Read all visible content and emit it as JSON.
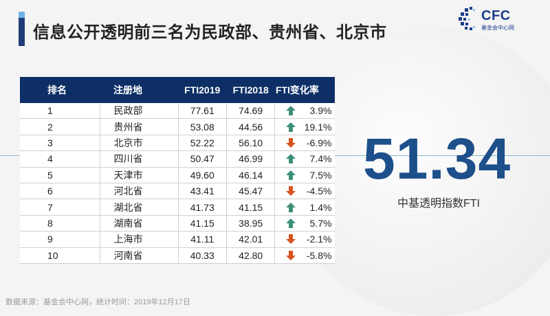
{
  "title": "信息公开透明前三名为民政部、贵州省、北京市",
  "logo": {
    "text": "CFC",
    "subtitle": "基金会中心网"
  },
  "table": {
    "headers": [
      "排名",
      "注册地",
      "FTI2019",
      "FTI2018",
      "FTI变化率"
    ],
    "rows": [
      {
        "rank": "1",
        "name": "民政部",
        "fti2019": "77.61",
        "fti2018": "74.69",
        "change": "3.9%",
        "dir": "up"
      },
      {
        "rank": "2",
        "name": "贵州省",
        "fti2019": "53.08",
        "fti2018": "44.56",
        "change": "19.1%",
        "dir": "up"
      },
      {
        "rank": "3",
        "name": "北京市",
        "fti2019": "52.22",
        "fti2018": "56.10",
        "change": "-6.9%",
        "dir": "down"
      },
      {
        "rank": "4",
        "name": "四川省",
        "fti2019": "50.47",
        "fti2018": "46.99",
        "change": "7.4%",
        "dir": "up"
      },
      {
        "rank": "5",
        "name": "天津市",
        "fti2019": "49.60",
        "fti2018": "46.14",
        "change": "7.5%",
        "dir": "up"
      },
      {
        "rank": "6",
        "name": "河北省",
        "fti2019": "43.41",
        "fti2018": "45.47",
        "change": "-4.5%",
        "dir": "down"
      },
      {
        "rank": "7",
        "name": "湖北省",
        "fti2019": "41.73",
        "fti2018": "41.15",
        "change": "1.4%",
        "dir": "up"
      },
      {
        "rank": "8",
        "name": "湖南省",
        "fti2019": "41.15",
        "fti2018": "38.95",
        "change": "5.7%",
        "dir": "up"
      },
      {
        "rank": "9",
        "name": "上海市",
        "fti2019": "41.11",
        "fti2018": "42.01",
        "change": "-2.1%",
        "dir": "down"
      },
      {
        "rank": "10",
        "name": "河南省",
        "fti2019": "40.33",
        "fti2018": "42.80",
        "change": "-5.8%",
        "dir": "down"
      }
    ]
  },
  "highlight": {
    "value": "51.34",
    "label": "中基透明指数FTI"
  },
  "source": "数据来源：基金会中心网，统计时间：2019年12月17日",
  "colors": {
    "header_bg": "#0d2f66",
    "up": "#3e8f7a",
    "down": "#d9531e",
    "big_number": "#1d4f8a"
  }
}
